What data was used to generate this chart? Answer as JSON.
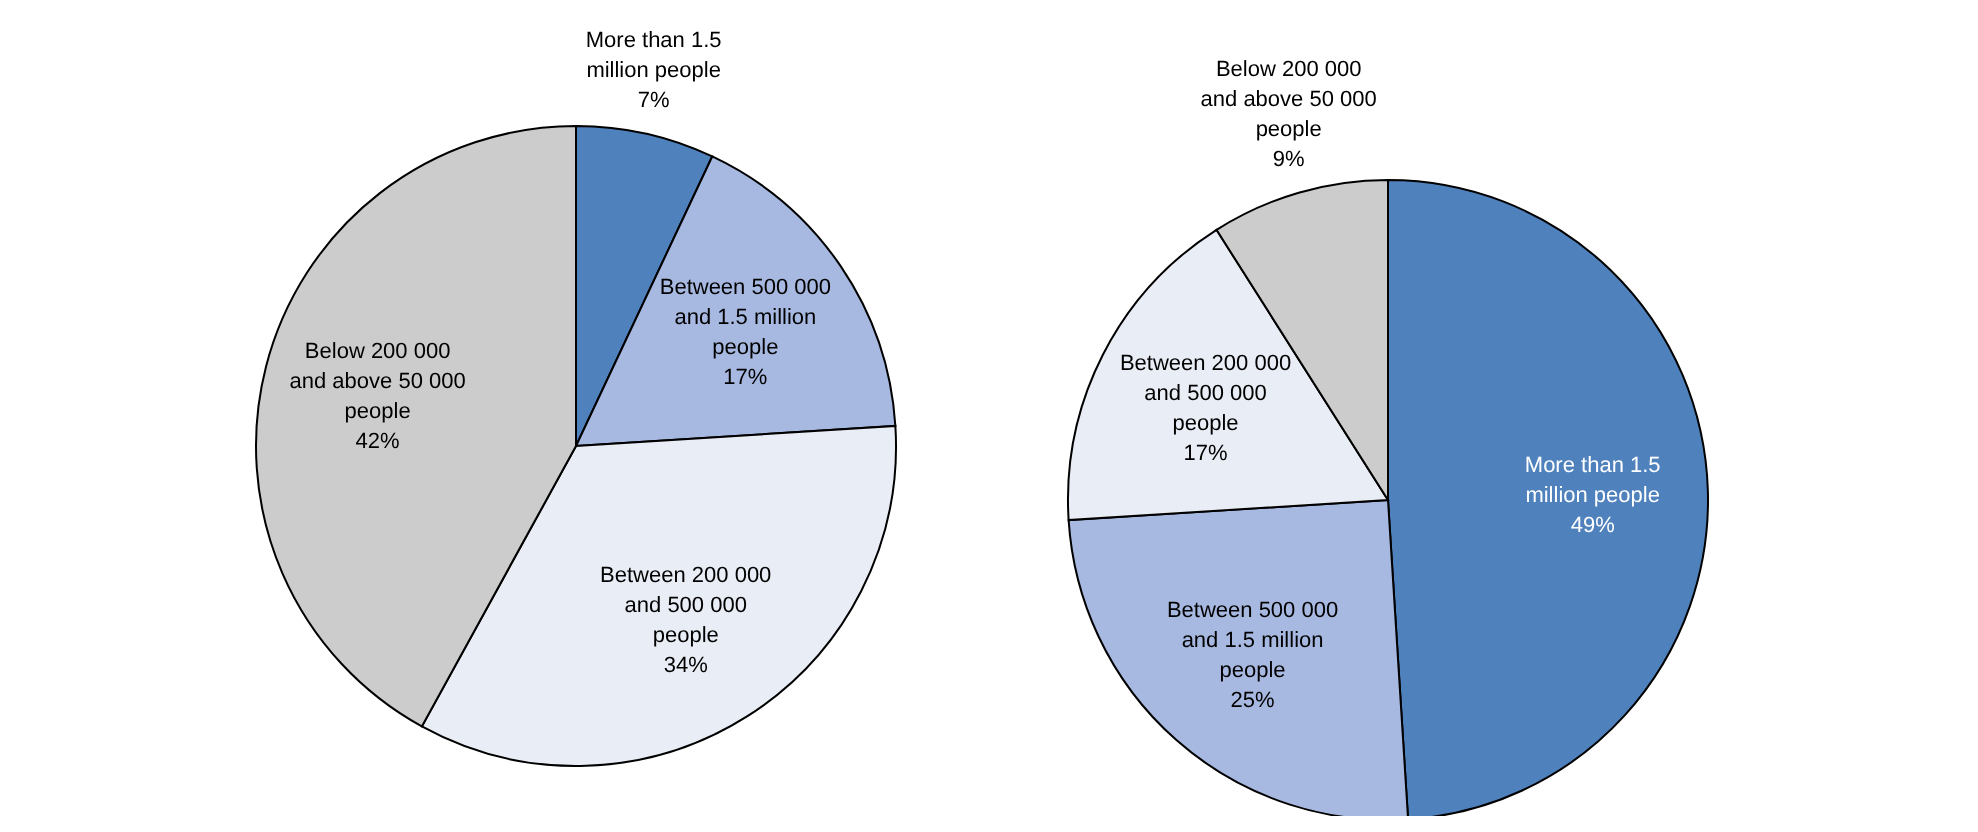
{
  "chart_data": [
    {
      "type": "pie",
      "categories": [
        "More than 1.5 million people",
        "Between 500 000 and 1.5 million people",
        "Between 200 000 and 500 000 people",
        "Below 200 000 and above 50 000 people"
      ],
      "values": [
        7,
        17,
        34,
        42
      ],
      "value_labels": [
        "7%",
        "17%",
        "34%",
        "42%"
      ],
      "colors": [
        "#4f81bd",
        "#a7b9e1",
        "#e9edf5",
        "#cccccc"
      ]
    },
    {
      "type": "pie",
      "categories": [
        "More than 1.5 million people",
        "Between 500 000 and 1.5 million people",
        "Between 200 000 and 500 000 people",
        "Below 200 000 and above 50 000 people"
      ],
      "values": [
        49,
        25,
        17,
        9
      ],
      "value_labels": [
        "49%",
        "25%",
        "17%",
        "9%"
      ],
      "colors": [
        "#4f81bd",
        "#a7b9e1",
        "#e9edf5",
        "#cccccc"
      ]
    }
  ]
}
